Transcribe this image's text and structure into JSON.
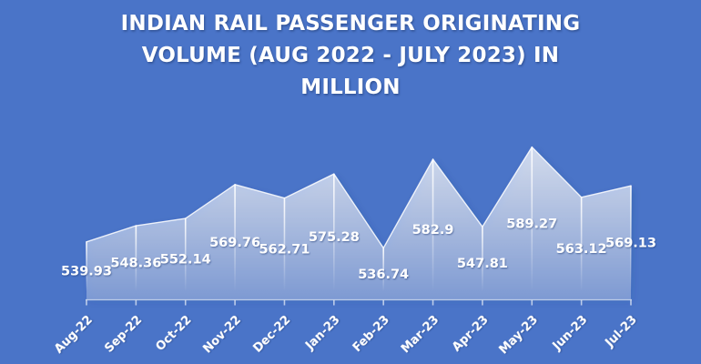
{
  "page": {
    "background": "#4a74c8"
  },
  "chart_data": {
    "type": "area",
    "title": "INDIAN RAIL PASSENGER ORIGINATING VOLUME (AUG 2022 - JULY 2023) IN MILLION",
    "title_lines": [
      "INDIAN RAIL PASSENGER ORIGINATING",
      "VOLUME (AUG 2022 - JULY 2023) IN",
      "MILLION"
    ],
    "categories": [
      "Aug-22",
      "Sep-22",
      "Oct-22",
      "Nov-22",
      "Dec-22",
      "Jan-23",
      "Feb-23",
      "Mar-23",
      "Apr-23",
      "May-23",
      "Jun-23",
      "Jul-23"
    ],
    "values": [
      539.93,
      548.36,
      552.14,
      569.76,
      562.71,
      575.28,
      536.74,
      582.9,
      547.81,
      589.27,
      563.12,
      569.13
    ],
    "labels": [
      "539.93",
      "548.36",
      "552.14",
      "569.76",
      "562.71",
      "575.28",
      "536.74",
      "582.9",
      "547.81",
      "589.27",
      "563.12",
      "569.13"
    ],
    "xlabel": "",
    "ylabel": "",
    "ylim": [
      510,
      600
    ],
    "grid": false,
    "legend": false,
    "data_label_position": "center-of-drop",
    "x_tick_rotation_deg": -45,
    "colors": {
      "background": "#4a74c8",
      "text": "#ffffff",
      "area_top": "rgba(255,255,255,0.72)",
      "area_bottom": "rgba(255,255,255,0.26)",
      "edge_stroke": "rgba(255,255,255,0.85)",
      "axis": "rgba(219,228,243,0.8)",
      "drop_line": "#ffffff",
      "shape_shadow": "#1d3a74"
    }
  }
}
